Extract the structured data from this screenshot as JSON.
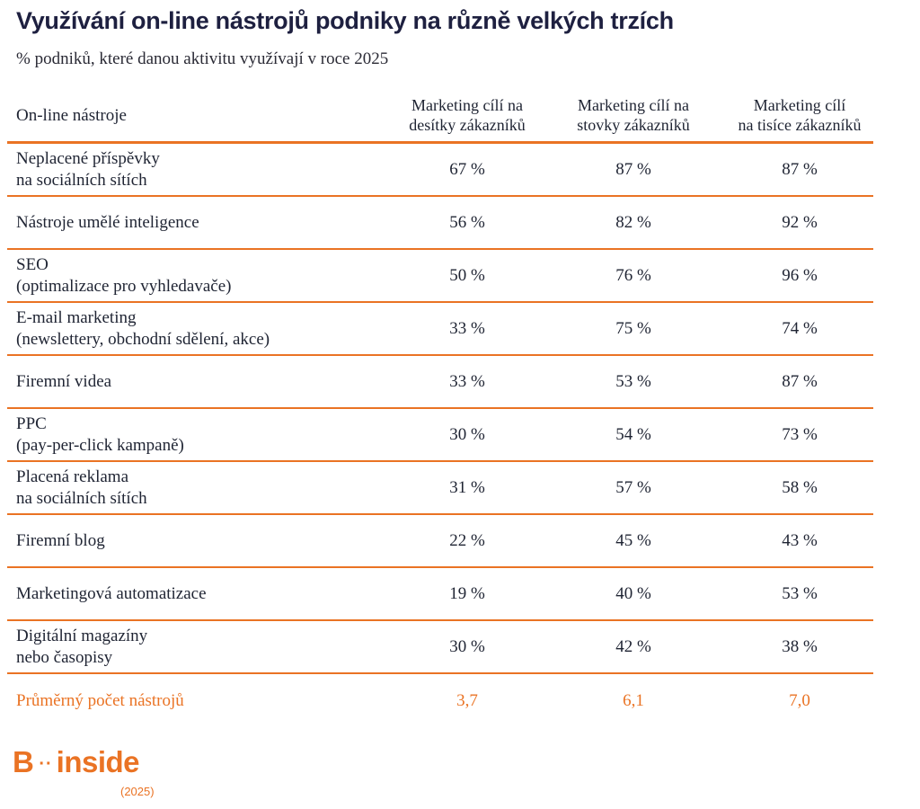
{
  "title": "Využívání on-line nástrojů podniky na různě velkých trzích",
  "subtitle": "% podniků, které danou aktivitu využívají v roce 2025",
  "table": {
    "headers": [
      "On-line nástroje",
      "Marketing cílí na\ndesítky zákazníků",
      "Marketing cílí na\nstovky zákazníků",
      "Marketing cílí\nna tisíce zákazníků"
    ],
    "rows": [
      {
        "label": "Neplacené příspěvky\nna sociálních sítích",
        "values": [
          "67 %",
          "87 %",
          "87 %"
        ]
      },
      {
        "label": "Nástroje umělé inteligence",
        "values": [
          "56 %",
          "82 %",
          "92 %"
        ]
      },
      {
        "label": "SEO\n(optimalizace pro vyhledavače)",
        "values": [
          "50 %",
          "76 %",
          "96 %"
        ]
      },
      {
        "label": "E-mail marketing\n(newslettery, obchodní sdělení, akce)",
        "values": [
          "33 %",
          "75 %",
          "74 %"
        ]
      },
      {
        "label": "Firemní videa",
        "values": [
          "33 %",
          "53 %",
          "87 %"
        ]
      },
      {
        "label": "PPC\n(pay-per-click kampaně)",
        "values": [
          "30 %",
          "54 %",
          "73 %"
        ]
      },
      {
        "label": "Placená reklama\nna sociálních sítích",
        "values": [
          "31 %",
          "57 %",
          "58 %"
        ]
      },
      {
        "label": "Firemní blog",
        "values": [
          "22 %",
          "45 %",
          "43 %"
        ]
      },
      {
        "label": "Marketingová automatizace",
        "values": [
          "19 %",
          "40 %",
          "53 %"
        ]
      },
      {
        "label": "Digitální magazíny\nnebo časopisy",
        "values": [
          "30 %",
          "42 %",
          "38 %"
        ]
      }
    ],
    "average": {
      "label": "Průměrný počet nástrojů",
      "values": [
        "3,7",
        "6,1",
        "7,0"
      ]
    }
  },
  "logo": {
    "brand_left": "B",
    "dots": "··",
    "brand_right": "inside",
    "year": "(2025)"
  },
  "colors": {
    "accent": "#ea7324",
    "title": "#1e2040"
  }
}
